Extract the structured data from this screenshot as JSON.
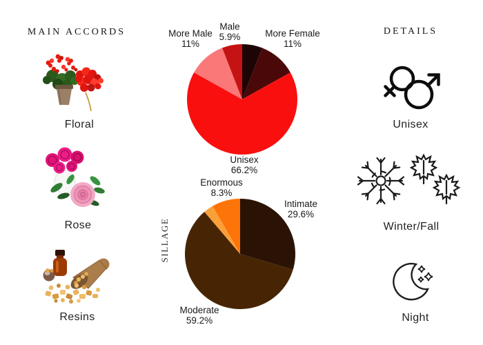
{
  "left_panel": {
    "title": "MAIN ACCORDS",
    "items": [
      {
        "label": "Floral",
        "icon": "geranium-pot-flowers-illustration"
      },
      {
        "label": "Rose",
        "icon": "rose-bouquet-illustration"
      },
      {
        "label": "Resins",
        "icon": "resin-bottle-scoop-illustration"
      }
    ]
  },
  "right_panel": {
    "title": "DETAILS",
    "items": [
      {
        "label": "Unisex",
        "icon": "unisex-gender-icon"
      },
      {
        "label": "Winter/Fall",
        "icon": "snowflake-maple-leaves-icon"
      },
      {
        "label": "Night",
        "icon": "crescent-moon-stars-icon"
      }
    ]
  },
  "chart_data": [
    {
      "type": "pie",
      "name": "gender-votes",
      "start": "top-clockwise",
      "legend_position": "outside-callout-labels",
      "slices": [
        {
          "label": "",
          "pct_text": "",
          "value": 5.9,
          "color": "#1d0506"
        },
        {
          "label": "More Female",
          "pct_text": "11%",
          "value": 11,
          "color": "#4b0808"
        },
        {
          "label": "Unisex",
          "pct_text": "66.2%",
          "value": 66.2,
          "color": "#fa0f0f"
        },
        {
          "label": "More Male",
          "pct_text": "11%",
          "value": 11,
          "color": "#fa7878"
        },
        {
          "label": "Male",
          "pct_text": "5.9%",
          "value": 5.9,
          "color": "#c51313"
        }
      ]
    },
    {
      "type": "pie",
      "name": "sillage-votes",
      "ylabel": "SILLAGE",
      "start": "top-clockwise",
      "legend_position": "outside-callout-labels",
      "slices": [
        {
          "label": "Intimate",
          "pct_text": "29.6%",
          "value": 29.6,
          "color": "#2a1305"
        },
        {
          "label": "Moderate",
          "pct_text": "59.2%",
          "value": 59.2,
          "color": "#472504"
        },
        {
          "label": "",
          "pct_text": "",
          "value": 2.9,
          "color": "#f9a038"
        },
        {
          "label": "Enormous",
          "pct_text": "8.3%",
          "value": 8.3,
          "color": "#fd7408"
        }
      ]
    }
  ]
}
